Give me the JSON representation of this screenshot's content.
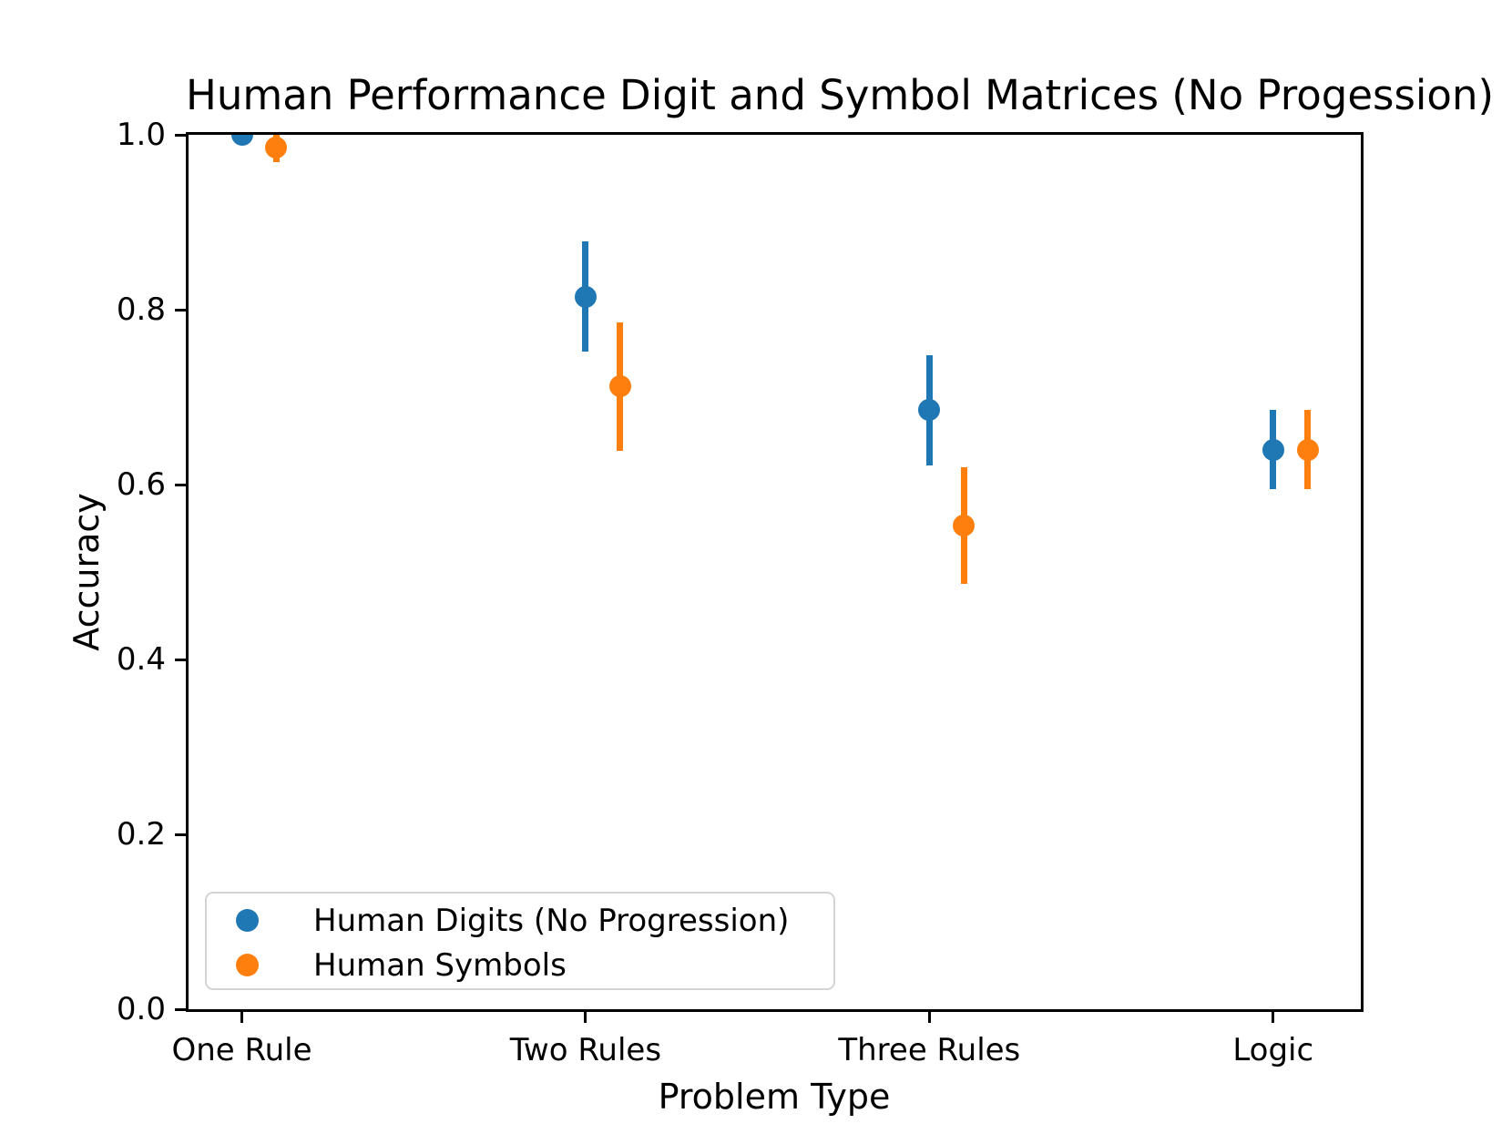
{
  "chart_data": {
    "type": "scatter",
    "title": "Human Performance Digit and Symbol Matrices (No Progession)",
    "xlabel": "Problem Type",
    "ylabel": "Accuracy",
    "categories": [
      "One Rule",
      "Two Rules",
      "Three Rules",
      "Logic"
    ],
    "yticks": [
      0.0,
      0.2,
      0.4,
      0.6,
      0.8,
      1.0
    ],
    "ylim": [
      0.0,
      1.0
    ],
    "grid": false,
    "legend_position": "lower left",
    "series": [
      {
        "name": "Human Digits (No Progression)",
        "color": "#1f77b4",
        "x_offset": 0.0,
        "values": [
          1.0,
          0.815,
          0.685,
          0.64
        ],
        "errors": [
          0.005,
          0.063,
          0.063,
          0.045
        ]
      },
      {
        "name": "Human Symbols",
        "color": "#ff7f0e",
        "x_offset": 0.1,
        "values": [
          0.985,
          0.712,
          0.553,
          0.64
        ],
        "errors": [
          0.016,
          0.073,
          0.067,
          0.045
        ]
      }
    ]
  }
}
